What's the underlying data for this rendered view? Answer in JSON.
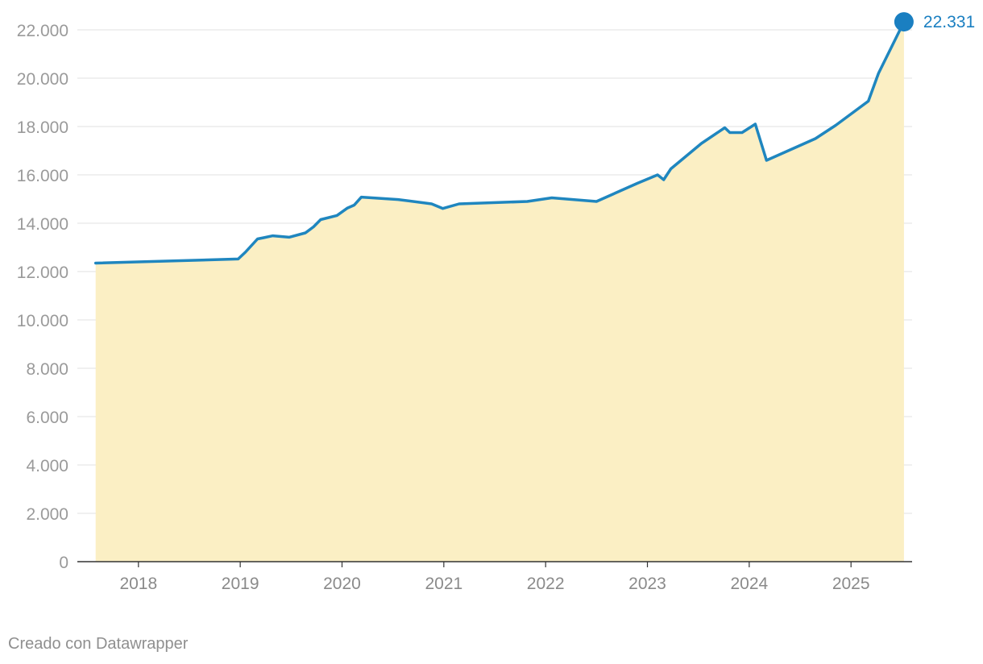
{
  "chart_data": {
    "type": "area",
    "title": "",
    "xlabel": "",
    "ylabel": "",
    "xlim": [
      2017.4,
      2025.6
    ],
    "ylim": [
      0,
      22000
    ],
    "y_ticks": [
      0,
      2000,
      4000,
      6000,
      8000,
      10000,
      12000,
      14000,
      16000,
      18000,
      20000,
      22000
    ],
    "y_tick_labels": [
      "0",
      "2.000",
      "4.000",
      "6.000",
      "8.000",
      "10.000",
      "12.000",
      "14.000",
      "16.000",
      "18.000",
      "20.000",
      "22.000"
    ],
    "x_ticks": [
      2018,
      2019,
      2020,
      2021,
      2022,
      2023,
      2024,
      2025
    ],
    "x_tick_labels": [
      "2018",
      "2019",
      "2020",
      "2021",
      "2022",
      "2023",
      "2024",
      "2025"
    ],
    "grid": true,
    "colors": {
      "line": "#1f86bf",
      "fill": "#fbefc4",
      "grid": "#e6e6e6",
      "axis": "#333333",
      "endpoint": "#1a7fc1"
    },
    "series": [
      {
        "x": [
          2017.58,
          2018.98,
          2019.05,
          2019.17,
          2019.23,
          2019.32,
          2019.48,
          2019.64,
          2019.72,
          2019.79,
          2019.95,
          2020.05,
          2020.12,
          2020.19,
          2020.55,
          2020.88,
          2020.99,
          2021.15,
          2021.82,
          2022.06,
          2022.5,
          2022.9,
          2023.1,
          2023.16,
          2023.23,
          2023.53,
          2023.76,
          2023.81,
          2023.93,
          2024.06,
          2024.17,
          2024.65,
          2024.85,
          2025.17,
          2025.27,
          2025.52
        ],
        "y": [
          12350,
          12520,
          12800,
          13350,
          13400,
          13480,
          13420,
          13600,
          13850,
          14150,
          14320,
          14620,
          14750,
          15080,
          14980,
          14800,
          14610,
          14800,
          14900,
          15050,
          14900,
          15650,
          16000,
          15800,
          16250,
          17300,
          17950,
          17750,
          17750,
          18100,
          16600,
          17500,
          18050,
          19050,
          20200,
          22331
        ]
      }
    ],
    "end_label": "22.331"
  },
  "footer": {
    "credit": "Creado con Datawrapper"
  }
}
